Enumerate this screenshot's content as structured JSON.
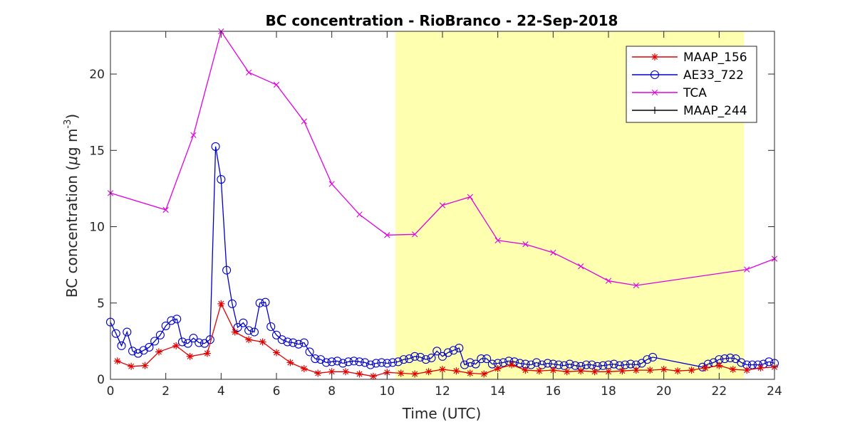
{
  "chart_data": {
    "type": "line",
    "title": "BC concentration  - RioBranco - 22-Sep-2018",
    "xlabel": "Time (UTC)",
    "ylabel_prefix": "BC concentration (",
    "ylabel_mu": "μ",
    "ylabel_unit": "g m",
    "ylabel_exp": "-3",
    "ylabel_suffix": ")",
    "xlim": [
      0,
      24
    ],
    "ylim": [
      0,
      22.8
    ],
    "xticks": [
      0,
      2,
      4,
      6,
      8,
      10,
      12,
      14,
      16,
      18,
      20,
      22,
      24
    ],
    "yticks": [
      0,
      5,
      10,
      15,
      20
    ],
    "grid": false,
    "legend_position": "top-right",
    "highlight": {
      "x0": 10.3,
      "x1": 22.9,
      "color": "#ffffb0"
    },
    "series": [
      {
        "name": "MAAP_156",
        "color": "#e00000",
        "marker": "asterisk",
        "x": [
          0.25,
          0.75,
          1.25,
          1.75,
          2.375,
          2.875,
          3.5,
          4.0,
          4.5,
          5.0,
          5.5,
          6.0,
          6.5,
          7.0,
          7.5,
          8.0,
          8.5,
          9.0,
          9.5,
          10.0,
          10.5,
          11.0,
          11.5,
          12.0,
          12.5,
          13.0,
          13.5,
          14.0,
          14.5,
          15.0,
          15.5,
          16.0,
          16.5,
          17.0,
          17.5,
          18.0,
          18.5,
          19.0,
          19.5,
          20.0,
          20.5,
          21.0,
          21.5,
          22.0,
          22.5,
          23.0,
          23.5,
          24.0
        ],
        "y": [
          1.2,
          0.85,
          0.9,
          1.8,
          2.2,
          1.5,
          1.7,
          4.95,
          3.1,
          2.6,
          2.45,
          1.75,
          1.1,
          0.7,
          0.4,
          0.5,
          0.5,
          0.35,
          0.2,
          0.45,
          0.4,
          0.35,
          0.5,
          0.65,
          0.55,
          0.4,
          0.35,
          0.7,
          0.95,
          0.6,
          0.55,
          0.6,
          0.5,
          0.55,
          0.5,
          0.5,
          0.55,
          0.6,
          0.6,
          0.65,
          0.55,
          0.6,
          0.75,
          0.9,
          0.65,
          0.6,
          0.75,
          0.8
        ]
      },
      {
        "name": "AE33_722",
        "color": "#0000cc",
        "marker": "circle",
        "x": [
          0.0,
          0.2,
          0.4,
          0.6,
          0.8,
          1.0,
          1.2,
          1.4,
          1.6,
          1.8,
          2.0,
          2.2,
          2.4,
          2.6,
          2.8,
          3.0,
          3.2,
          3.4,
          3.6,
          3.8,
          4.0,
          4.2,
          4.4,
          4.6,
          4.8,
          5.0,
          5.2,
          5.4,
          5.6,
          5.8,
          6.0,
          6.2,
          6.4,
          6.6,
          6.8,
          7.0,
          7.2,
          7.4,
          7.6,
          7.8,
          8.0,
          8.2,
          8.4,
          8.6,
          8.8,
          9.0,
          9.2,
          9.4,
          9.6,
          9.8,
          10.0,
          10.2,
          10.4,
          10.6,
          10.8,
          11.0,
          11.2,
          11.4,
          11.6,
          11.8,
          12.0,
          12.2,
          12.4,
          12.6,
          12.8,
          13.0,
          13.2,
          13.4,
          13.6,
          13.8,
          14.0,
          14.2,
          14.4,
          14.6,
          14.8,
          15.0,
          15.2,
          15.4,
          15.6,
          15.8,
          16.0,
          16.2,
          16.4,
          16.6,
          16.8,
          17.0,
          17.2,
          17.4,
          17.6,
          17.8,
          18.0,
          18.2,
          18.4,
          18.6,
          18.8,
          19.0,
          19.2,
          19.4,
          19.6,
          21.4,
          21.6,
          21.8,
          22.0,
          22.2,
          22.4,
          22.6,
          22.8,
          23.0,
          23.2,
          23.4,
          23.6,
          23.8,
          24.0
        ],
        "y": [
          3.75,
          3.0,
          2.2,
          3.1,
          1.85,
          1.7,
          1.9,
          2.1,
          2.5,
          2.9,
          3.5,
          3.85,
          3.95,
          2.45,
          2.35,
          2.7,
          2.4,
          2.35,
          2.6,
          15.25,
          13.1,
          7.15,
          4.95,
          3.4,
          3.7,
          3.2,
          3.1,
          5.0,
          5.05,
          3.45,
          2.9,
          2.6,
          2.45,
          2.4,
          2.3,
          2.4,
          1.8,
          1.35,
          1.3,
          1.1,
          1.15,
          1.2,
          1.05,
          1.15,
          1.2,
          1.15,
          1.1,
          0.95,
          1.05,
          1.1,
          1.05,
          1.1,
          1.15,
          1.3,
          1.35,
          1.5,
          1.45,
          1.3,
          1.4,
          1.85,
          1.5,
          1.75,
          1.9,
          2.05,
          0.95,
          1.1,
          1.0,
          1.35,
          1.35,
          1.0,
          1.05,
          1.1,
          1.2,
          1.15,
          1.05,
          1.0,
          0.95,
          1.1,
          0.95,
          1.05,
          1.0,
          0.95,
          0.9,
          1.0,
          0.9,
          0.85,
          0.95,
          0.95,
          0.85,
          0.9,
          0.95,
          1.0,
          0.9,
          0.95,
          1.0,
          0.95,
          1.05,
          1.3,
          1.45,
          0.8,
          1.0,
          1.1,
          1.3,
          1.35,
          1.4,
          1.35,
          1.1,
          0.95,
          0.95,
          0.95,
          1.0,
          1.15,
          1.05
        ]
      },
      {
        "name": "TCA",
        "color": "#e000e0",
        "marker": "x",
        "x": [
          0.0,
          2.0,
          3.0,
          4.0,
          5.0,
          6.0,
          7.0,
          8.0,
          9.0,
          10.0,
          11.0,
          12.0,
          13.0,
          14.0,
          15.0,
          16.0,
          17.0,
          18.0,
          19.0,
          23.0,
          24.0
        ],
        "y": [
          12.2,
          11.1,
          16.0,
          22.8,
          20.1,
          19.3,
          16.9,
          12.8,
          10.8,
          9.45,
          9.5,
          11.4,
          11.95,
          9.1,
          8.85,
          8.3,
          7.4,
          6.45,
          6.15,
          7.2,
          7.9
        ]
      },
      {
        "name": "MAAP_244",
        "color": "#000000",
        "marker": "plus",
        "x": [],
        "y": []
      }
    ]
  }
}
